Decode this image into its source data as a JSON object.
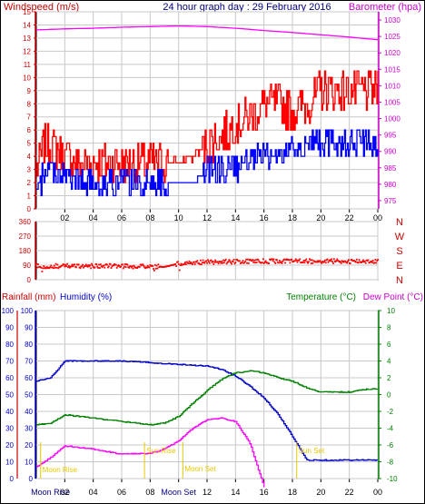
{
  "header": {
    "left_label": "Windspeed (m/s)",
    "title": "24 hour graph day : 29 February 2016",
    "right_label": "Barometer (hpa)"
  },
  "lower_header": {
    "rainfall": "Rainfall (mm)",
    "humidity": "Humidity (%)",
    "temperature": "Temperature (°C)",
    "dewpoint": "Dew Point (°C)"
  },
  "colors": {
    "wind_speed": "#0000ff",
    "wind_gust": "#ff0000",
    "barometer": "#ff00ff",
    "direction": "#ff0000",
    "humidity": "#0000c8",
    "temperature": "#008000",
    "dewpoint": "#ff00ff",
    "sun_moon": "#e6c800"
  },
  "chart_data": [
    {
      "type": "line",
      "name": "wind_and_pressure",
      "x_ticks": [
        "02",
        "04",
        "06",
        "08",
        "10",
        "12",
        "14",
        "16",
        "18",
        "20",
        "22",
        "00"
      ],
      "y_left_ticks": [
        0,
        1,
        2,
        3,
        4,
        5,
        6,
        7,
        8,
        9,
        10,
        11,
        12,
        13,
        14,
        15
      ],
      "y_right_ticks": [
        975,
        980,
        985,
        990,
        995,
        1000,
        1005,
        1010,
        1015,
        1020,
        1025,
        1030
      ],
      "ylim_left": [
        0,
        15
      ],
      "ylim_right": [
        972.5,
        1032.5
      ],
      "grid": true,
      "series": [
        {
          "key": "gust",
          "hours": [
            0,
            0.6,
            1,
            2,
            3,
            4,
            5,
            6,
            7,
            8,
            9,
            10,
            11,
            12,
            13,
            14,
            15,
            16,
            17,
            18,
            19,
            20,
            21,
            22,
            23,
            24
          ],
          "values": [
            3,
            5,
            5,
            4,
            3.5,
            3.5,
            3.5,
            3.5,
            3.5,
            3.5,
            3.5,
            3.5,
            4,
            5,
            5.5,
            6.5,
            7,
            8,
            8,
            7.5,
            8,
            9,
            9,
            9,
            9,
            9
          ]
        },
        {
          "key": "speed",
          "hours": [
            0,
            0.6,
            1,
            2,
            3,
            4,
            5,
            6,
            7,
            8,
            9,
            10,
            11,
            12,
            13,
            14,
            15,
            16,
            17,
            18,
            19,
            20,
            21,
            22,
            23,
            24
          ],
          "values": [
            1,
            3,
            3,
            2.5,
            2,
            2,
            2,
            2,
            2,
            2,
            2,
            2,
            2,
            3,
            3,
            3,
            3.5,
            4,
            4,
            4.5,
            5,
            5,
            5,
            5,
            5,
            4.5
          ]
        },
        {
          "key": "barometer",
          "hours": [
            0,
            2,
            4,
            6,
            8,
            10,
            12,
            14,
            16,
            18,
            20,
            22,
            24
          ],
          "values": [
            1027,
            1027.3,
            1027.5,
            1027.8,
            1028,
            1028.2,
            1028,
            1027.5,
            1026.8,
            1026.2,
            1025.5,
            1024.8,
            1024
          ]
        }
      ]
    },
    {
      "type": "scatter",
      "name": "wind_direction",
      "y_ticks": [
        0,
        90,
        180,
        270,
        360
      ],
      "compass": [
        "N",
        "W",
        "S",
        "E",
        "N"
      ],
      "ylim": [
        0,
        360
      ],
      "grid": true,
      "series": [
        {
          "key": "direction",
          "hours": [
            0,
            3,
            6,
            9,
            10,
            12,
            15,
            18,
            21,
            24
          ],
          "values": [
            85,
            85,
            85,
            80,
            100,
            110,
            115,
            115,
            115,
            115
          ]
        }
      ]
    },
    {
      "type": "line",
      "name": "temperature_humidity",
      "y_left_ticks": [
        0,
        10,
        20,
        30,
        40,
        50,
        60,
        70,
        80,
        90,
        100
      ],
      "y_right_ticks": [
        -10,
        -8,
        -6,
        -4,
        -2,
        0,
        2,
        4,
        6,
        8,
        10
      ],
      "ylim_left": [
        0,
        100
      ],
      "ylim_right": [
        -10,
        10
      ],
      "grid": true,
      "series": [
        {
          "key": "humidity",
          "hours": [
            0,
            1,
            2,
            4,
            6,
            8,
            10,
            12,
            13,
            14,
            15,
            16,
            17,
            18,
            19,
            20,
            21,
            22,
            23,
            24
          ],
          "values": [
            58,
            60,
            70,
            70,
            70,
            69,
            68,
            67,
            65,
            61,
            55,
            48,
            38,
            25,
            11,
            11,
            11,
            11,
            11,
            11
          ]
        },
        {
          "key": "temperature",
          "hours": [
            0,
            1,
            2,
            4,
            6,
            8,
            9,
            10,
            11,
            12,
            13,
            14,
            15,
            16,
            17,
            18,
            19,
            20,
            21,
            22,
            23,
            24
          ],
          "values": [
            -3.6,
            -3.4,
            -2.4,
            -2.8,
            -3.2,
            -3.6,
            -3.4,
            -2.6,
            -1,
            0.5,
            1.8,
            2.6,
            2.8,
            2.6,
            2,
            1.6,
            0.8,
            0.3,
            0.3,
            0.3,
            0.6,
            0.7
          ]
        },
        {
          "key": "dewpoint",
          "hours": [
            0,
            1,
            2,
            4,
            6,
            8,
            9,
            10,
            11,
            12,
            13,
            14,
            15,
            16
          ],
          "values": [
            -8.6,
            -7.5,
            -6.1,
            -6.5,
            -7.1,
            -7.0,
            -6.5,
            -5.5,
            -4,
            -3,
            -2.8,
            -3.2,
            -5.8,
            -11
          ]
        }
      ],
      "events": [
        {
          "label": "Moon Rise",
          "hour": 0.3
        },
        {
          "label": "Sun Rise",
          "hour": 7.6
        },
        {
          "label": "Moon Set",
          "hour": 10.3
        },
        {
          "label": "Sun Set",
          "hour": 18.3
        }
      ]
    }
  ],
  "bottom_axis": {
    "labels": [
      "Moon Rise",
      "02",
      "04",
      "06",
      "08",
      "Moon Set",
      "12",
      "14",
      "16",
      "18",
      "20",
      "22",
      "00"
    ]
  }
}
